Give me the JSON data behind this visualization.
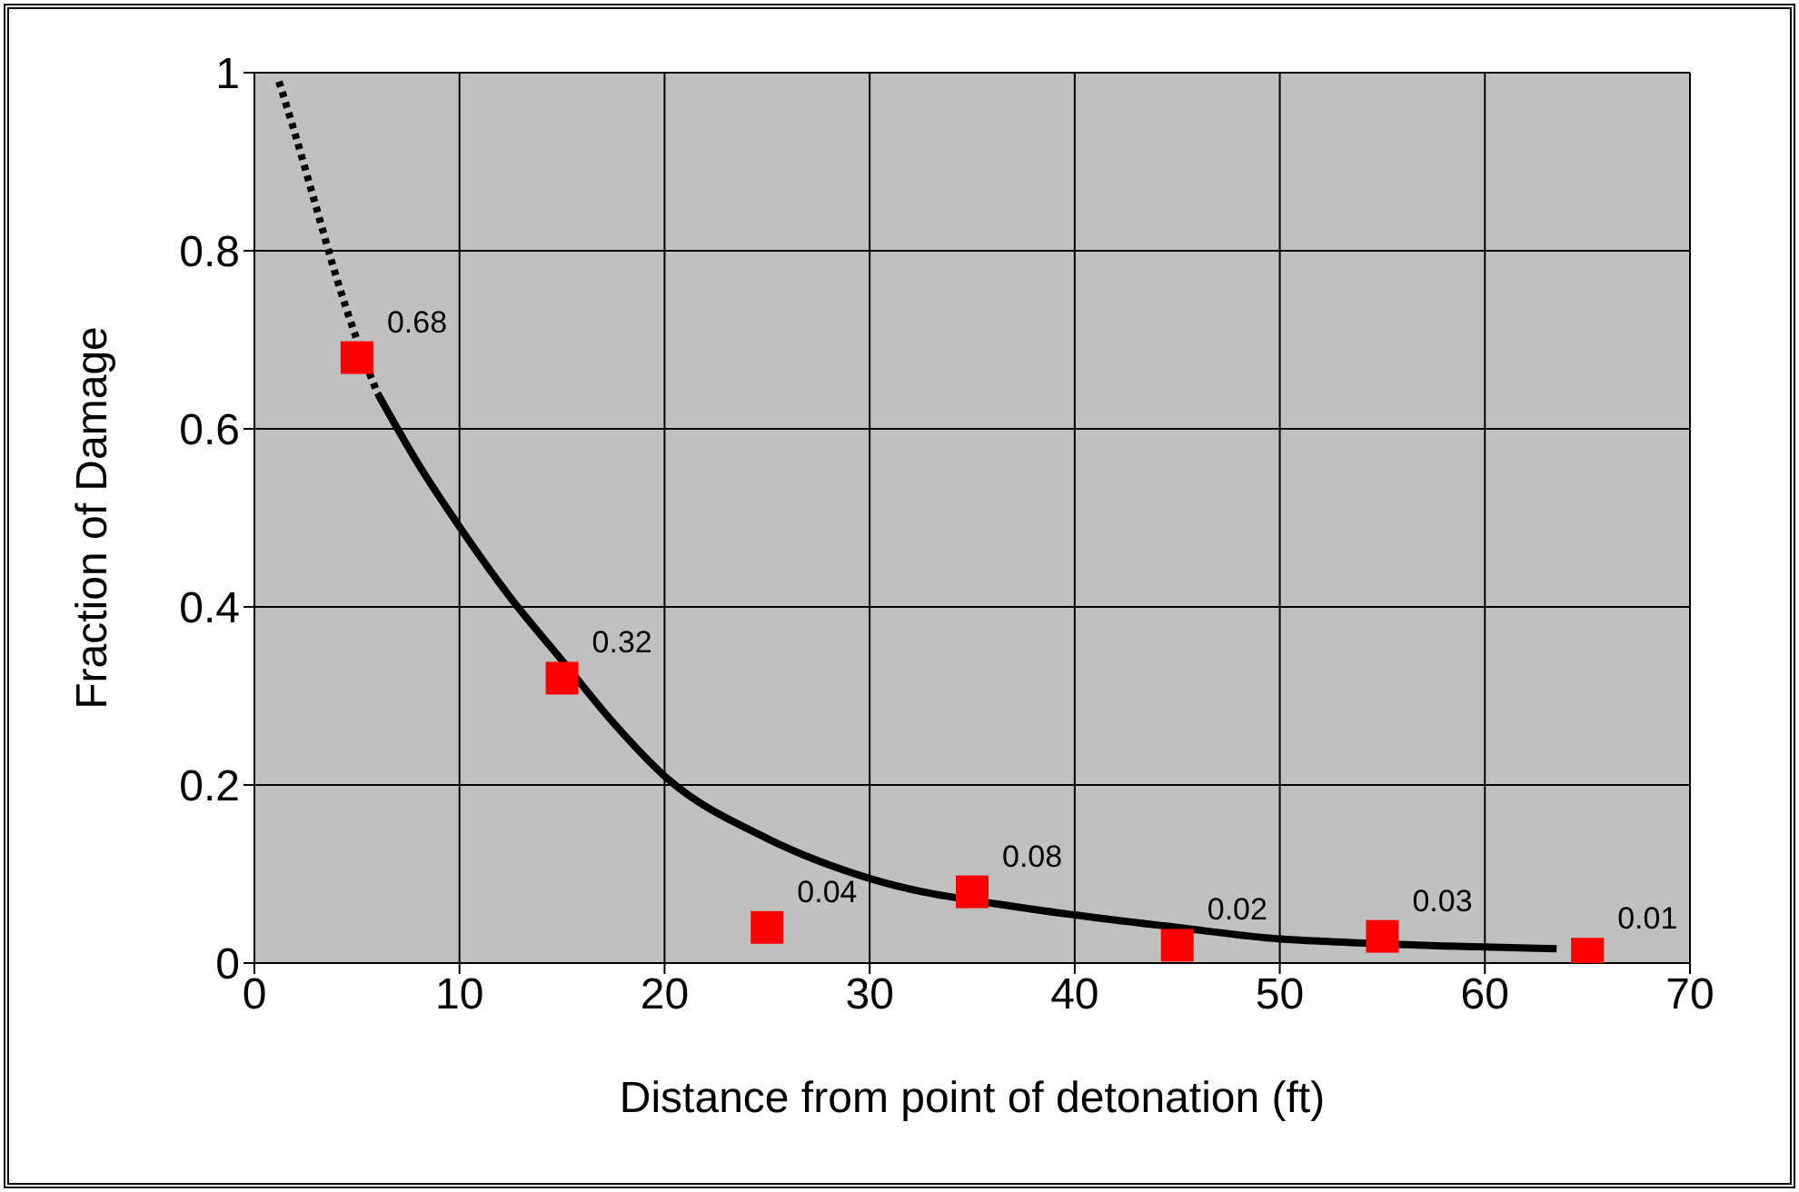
{
  "chart_data": {
    "type": "scatter",
    "xlabel": "Distance from point of detonation (ft)",
    "ylabel": "Fraction of Damage",
    "xlim": [
      0,
      70
    ],
    "xticks": [
      0,
      10,
      20,
      30,
      40,
      50,
      60,
      70
    ],
    "ylim": [
      0,
      1
    ],
    "yticks": [
      0,
      0.2,
      0.4,
      0.6,
      0.8,
      1
    ],
    "grid": true,
    "legend": false,
    "series": [
      {
        "type": "line",
        "color": "#000000",
        "line_style": "dotted",
        "marker": "none",
        "x": [
          1.2,
          2,
          3,
          4,
          5,
          6
        ],
        "values": [
          0.99,
          0.93,
          0.85,
          0.77,
          0.7,
          0.64
        ]
      },
      {
        "type": "line",
        "color": "#000000",
        "line_style": "solid",
        "marker": "none",
        "x": [
          6,
          8,
          10,
          12.5,
          15,
          17.5,
          20,
          25,
          30,
          37.5,
          40,
          45,
          50,
          52.5,
          60,
          63.5
        ],
        "values": [
          0.64,
          0.56,
          0.49,
          0.41,
          0.34,
          0.27,
          0.21,
          0.14,
          0.095,
          0.062,
          0.054,
          0.04,
          0.027,
          0.024,
          0.018,
          0.016
        ]
      },
      {
        "color": "#ff0000",
        "marker": "square",
        "x": [
          5,
          15,
          25,
          35,
          45,
          55,
          65
        ],
        "values": [
          0.68,
          0.32,
          0.04,
          0.08,
          0.02,
          0.03,
          0.01
        ],
        "value_labels": [
          "0.68",
          "0.32",
          "0.04",
          "0.08",
          "0.02",
          "0.03",
          "0.01"
        ]
      }
    ]
  }
}
